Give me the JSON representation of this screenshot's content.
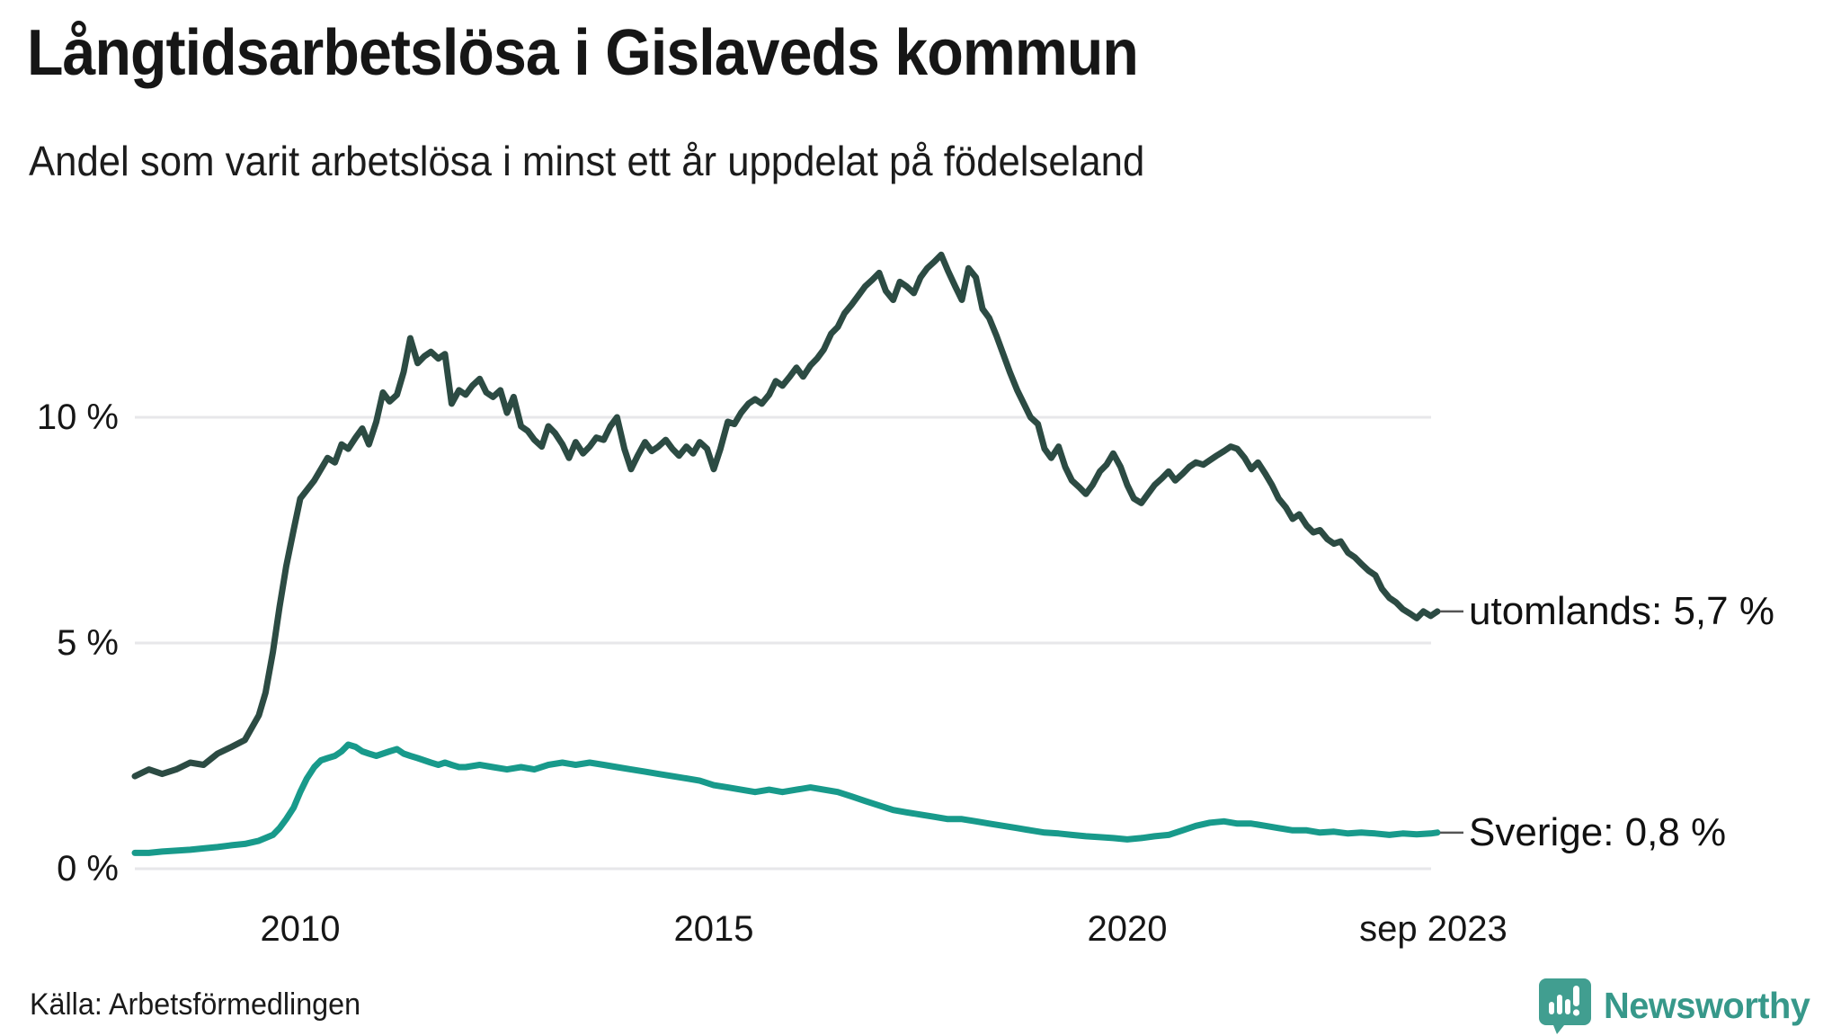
{
  "header": {
    "title": "Långtidsarbetslösa i Gislaveds kommun",
    "subtitle": "Andel som varit arbetslösa i minst ett år uppdelat på födelseland"
  },
  "footer": {
    "source": "Källa: Arbetsförmedlingen",
    "brand": "Newsworthy"
  },
  "colors": {
    "series_utomlands": "#2c4b43",
    "series_sverige": "#189a8b",
    "gridline": "#e7e7ea",
    "annotation_dash": "#555555",
    "text": "#161616",
    "brand_teal": "#419e90",
    "brand_text": "#37988a"
  },
  "chart_data": {
    "type": "line",
    "title": "Långtidsarbetslösa i Gislaveds kommun",
    "subtitle": "Andel som varit arbetslösa i minst ett år uppdelat på födelseland",
    "xlabel": "",
    "ylabel": "",
    "xlim": [
      2008.0,
      2023.75
    ],
    "ylim": [
      0,
      14.2
    ],
    "grid": "horizontal-only",
    "legend_position": "end-of-line-labels",
    "y_ticks": [
      {
        "label": "10 %",
        "value": 10
      },
      {
        "label": "5 %",
        "value": 5
      },
      {
        "label": "0 %",
        "value": 0
      }
    ],
    "x_ticks": [
      {
        "label": "2010",
        "year": 2010
      },
      {
        "label": "2015",
        "year": 2015
      },
      {
        "label": "2020",
        "year": 2020
      },
      {
        "label": "sep 2023",
        "year": 2023.7
      }
    ],
    "series": [
      {
        "name": "utomlands",
        "end_label": "utomlands: 5,7 %",
        "end_value_text": "5,7 %",
        "color": "#2c4b43",
        "points": [
          [
            2008.0,
            2.05
          ],
          [
            2008.17,
            2.2
          ],
          [
            2008.33,
            2.1
          ],
          [
            2008.5,
            2.2
          ],
          [
            2008.67,
            2.35
          ],
          [
            2008.83,
            2.3
          ],
          [
            2009.0,
            2.55
          ],
          [
            2009.17,
            2.7
          ],
          [
            2009.33,
            2.85
          ],
          [
            2009.5,
            3.4
          ],
          [
            2009.58,
            3.9
          ],
          [
            2009.67,
            4.8
          ],
          [
            2009.75,
            5.8
          ],
          [
            2009.83,
            6.7
          ],
          [
            2009.92,
            7.5
          ],
          [
            2010.0,
            8.2
          ],
          [
            2010.17,
            8.6
          ],
          [
            2010.33,
            9.1
          ],
          [
            2010.42,
            9.0
          ],
          [
            2010.5,
            9.4
          ],
          [
            2010.58,
            9.3
          ],
          [
            2010.67,
            9.55
          ],
          [
            2010.75,
            9.75
          ],
          [
            2010.83,
            9.4
          ],
          [
            2010.92,
            9.9
          ],
          [
            2011.0,
            10.55
          ],
          [
            2011.08,
            10.35
          ],
          [
            2011.17,
            10.5
          ],
          [
            2011.25,
            11.0
          ],
          [
            2011.33,
            11.75
          ],
          [
            2011.42,
            11.2
          ],
          [
            2011.5,
            11.35
          ],
          [
            2011.58,
            11.45
          ],
          [
            2011.67,
            11.3
          ],
          [
            2011.75,
            11.4
          ],
          [
            2011.83,
            10.3
          ],
          [
            2011.92,
            10.6
          ],
          [
            2012.0,
            10.5
          ],
          [
            2012.08,
            10.7
          ],
          [
            2012.17,
            10.85
          ],
          [
            2012.25,
            10.55
          ],
          [
            2012.33,
            10.45
          ],
          [
            2012.42,
            10.6
          ],
          [
            2012.5,
            10.1
          ],
          [
            2012.58,
            10.45
          ],
          [
            2012.67,
            9.8
          ],
          [
            2012.75,
            9.7
          ],
          [
            2012.83,
            9.5
          ],
          [
            2012.92,
            9.35
          ],
          [
            2013.0,
            9.8
          ],
          [
            2013.08,
            9.65
          ],
          [
            2013.17,
            9.4
          ],
          [
            2013.25,
            9.1
          ],
          [
            2013.33,
            9.45
          ],
          [
            2013.42,
            9.2
          ],
          [
            2013.5,
            9.35
          ],
          [
            2013.58,
            9.55
          ],
          [
            2013.67,
            9.5
          ],
          [
            2013.75,
            9.8
          ],
          [
            2013.83,
            10.0
          ],
          [
            2013.92,
            9.3
          ],
          [
            2014.0,
            8.85
          ],
          [
            2014.08,
            9.15
          ],
          [
            2014.17,
            9.45
          ],
          [
            2014.25,
            9.25
          ],
          [
            2014.33,
            9.35
          ],
          [
            2014.42,
            9.5
          ],
          [
            2014.5,
            9.3
          ],
          [
            2014.58,
            9.15
          ],
          [
            2014.67,
            9.35
          ],
          [
            2014.75,
            9.2
          ],
          [
            2014.83,
            9.45
          ],
          [
            2014.92,
            9.3
          ],
          [
            2015.0,
            8.85
          ],
          [
            2015.08,
            9.3
          ],
          [
            2015.17,
            9.9
          ],
          [
            2015.25,
            9.85
          ],
          [
            2015.33,
            10.1
          ],
          [
            2015.42,
            10.3
          ],
          [
            2015.5,
            10.4
          ],
          [
            2015.58,
            10.3
          ],
          [
            2015.67,
            10.5
          ],
          [
            2015.75,
            10.8
          ],
          [
            2015.83,
            10.7
          ],
          [
            2015.92,
            10.9
          ],
          [
            2016.0,
            11.1
          ],
          [
            2016.08,
            10.9
          ],
          [
            2016.17,
            11.15
          ],
          [
            2016.25,
            11.3
          ],
          [
            2016.33,
            11.5
          ],
          [
            2016.42,
            11.85
          ],
          [
            2016.5,
            12.0
          ],
          [
            2016.58,
            12.3
          ],
          [
            2016.67,
            12.5
          ],
          [
            2016.75,
            12.7
          ],
          [
            2016.83,
            12.9
          ],
          [
            2016.92,
            13.05
          ],
          [
            2017.0,
            13.2
          ],
          [
            2017.08,
            12.8
          ],
          [
            2017.17,
            12.6
          ],
          [
            2017.25,
            13.0
          ],
          [
            2017.33,
            12.9
          ],
          [
            2017.42,
            12.75
          ],
          [
            2017.5,
            13.1
          ],
          [
            2017.58,
            13.3
          ],
          [
            2017.67,
            13.45
          ],
          [
            2017.75,
            13.6
          ],
          [
            2017.83,
            13.25
          ],
          [
            2017.92,
            12.9
          ],
          [
            2018.0,
            12.6
          ],
          [
            2018.08,
            13.3
          ],
          [
            2018.17,
            13.1
          ],
          [
            2018.25,
            12.4
          ],
          [
            2018.33,
            12.2
          ],
          [
            2018.42,
            11.8
          ],
          [
            2018.5,
            11.4
          ],
          [
            2018.58,
            11.0
          ],
          [
            2018.67,
            10.6
          ],
          [
            2018.75,
            10.3
          ],
          [
            2018.83,
            10.0
          ],
          [
            2018.92,
            9.85
          ],
          [
            2019.0,
            9.3
          ],
          [
            2019.08,
            9.1
          ],
          [
            2019.17,
            9.35
          ],
          [
            2019.25,
            8.9
          ],
          [
            2019.33,
            8.6
          ],
          [
            2019.42,
            8.45
          ],
          [
            2019.5,
            8.3
          ],
          [
            2019.58,
            8.5
          ],
          [
            2019.67,
            8.8
          ],
          [
            2019.75,
            8.95
          ],
          [
            2019.83,
            9.2
          ],
          [
            2019.92,
            8.9
          ],
          [
            2020.0,
            8.5
          ],
          [
            2020.08,
            8.2
          ],
          [
            2020.17,
            8.1
          ],
          [
            2020.25,
            8.3
          ],
          [
            2020.33,
            8.5
          ],
          [
            2020.42,
            8.65
          ],
          [
            2020.5,
            8.8
          ],
          [
            2020.58,
            8.6
          ],
          [
            2020.67,
            8.75
          ],
          [
            2020.75,
            8.9
          ],
          [
            2020.83,
            9.0
          ],
          [
            2020.92,
            8.95
          ],
          [
            2021.0,
            9.05
          ],
          [
            2021.08,
            9.15
          ],
          [
            2021.17,
            9.25
          ],
          [
            2021.25,
            9.35
          ],
          [
            2021.33,
            9.3
          ],
          [
            2021.42,
            9.1
          ],
          [
            2021.5,
            8.85
          ],
          [
            2021.58,
            9.0
          ],
          [
            2021.67,
            8.75
          ],
          [
            2021.75,
            8.5
          ],
          [
            2021.83,
            8.2
          ],
          [
            2021.92,
            8.0
          ],
          [
            2022.0,
            7.75
          ],
          [
            2022.08,
            7.85
          ],
          [
            2022.17,
            7.6
          ],
          [
            2022.25,
            7.45
          ],
          [
            2022.33,
            7.5
          ],
          [
            2022.42,
            7.3
          ],
          [
            2022.5,
            7.2
          ],
          [
            2022.58,
            7.25
          ],
          [
            2022.67,
            7.0
          ],
          [
            2022.75,
            6.9
          ],
          [
            2022.83,
            6.75
          ],
          [
            2022.92,
            6.6
          ],
          [
            2023.0,
            6.5
          ],
          [
            2023.08,
            6.2
          ],
          [
            2023.17,
            6.0
          ],
          [
            2023.25,
            5.9
          ],
          [
            2023.33,
            5.75
          ],
          [
            2023.42,
            5.65
          ],
          [
            2023.5,
            5.55
          ],
          [
            2023.58,
            5.7
          ],
          [
            2023.67,
            5.6
          ],
          [
            2023.75,
            5.7
          ]
        ]
      },
      {
        "name": "Sverige",
        "end_label": "Sverige: 0,8 %",
        "end_value_text": "0,8 %",
        "color": "#189a8b",
        "points": [
          [
            2008.0,
            0.35
          ],
          [
            2008.17,
            0.35
          ],
          [
            2008.33,
            0.38
          ],
          [
            2008.5,
            0.4
          ],
          [
            2008.67,
            0.42
          ],
          [
            2008.83,
            0.45
          ],
          [
            2009.0,
            0.48
          ],
          [
            2009.17,
            0.52
          ],
          [
            2009.33,
            0.55
          ],
          [
            2009.5,
            0.62
          ],
          [
            2009.67,
            0.75
          ],
          [
            2009.75,
            0.9
          ],
          [
            2009.83,
            1.1
          ],
          [
            2009.92,
            1.35
          ],
          [
            2010.0,
            1.7
          ],
          [
            2010.08,
            2.0
          ],
          [
            2010.17,
            2.25
          ],
          [
            2010.25,
            2.4
          ],
          [
            2010.33,
            2.45
          ],
          [
            2010.42,
            2.5
          ],
          [
            2010.5,
            2.6
          ],
          [
            2010.58,
            2.75
          ],
          [
            2010.67,
            2.7
          ],
          [
            2010.75,
            2.6
          ],
          [
            2010.83,
            2.55
          ],
          [
            2010.92,
            2.5
          ],
          [
            2011.0,
            2.55
          ],
          [
            2011.08,
            2.6
          ],
          [
            2011.17,
            2.65
          ],
          [
            2011.25,
            2.55
          ],
          [
            2011.33,
            2.5
          ],
          [
            2011.42,
            2.45
          ],
          [
            2011.5,
            2.4
          ],
          [
            2011.58,
            2.35
          ],
          [
            2011.67,
            2.3
          ],
          [
            2011.75,
            2.35
          ],
          [
            2011.83,
            2.3
          ],
          [
            2011.92,
            2.25
          ],
          [
            2012.0,
            2.25
          ],
          [
            2012.17,
            2.3
          ],
          [
            2012.33,
            2.25
          ],
          [
            2012.5,
            2.2
          ],
          [
            2012.67,
            2.25
          ],
          [
            2012.83,
            2.2
          ],
          [
            2013.0,
            2.3
          ],
          [
            2013.17,
            2.35
          ],
          [
            2013.33,
            2.3
          ],
          [
            2013.5,
            2.35
          ],
          [
            2013.67,
            2.3
          ],
          [
            2013.83,
            2.25
          ],
          [
            2014.0,
            2.2
          ],
          [
            2014.17,
            2.15
          ],
          [
            2014.33,
            2.1
          ],
          [
            2014.5,
            2.05
          ],
          [
            2014.67,
            2.0
          ],
          [
            2014.83,
            1.95
          ],
          [
            2015.0,
            1.85
          ],
          [
            2015.17,
            1.8
          ],
          [
            2015.33,
            1.75
          ],
          [
            2015.5,
            1.7
          ],
          [
            2015.67,
            1.75
          ],
          [
            2015.83,
            1.7
          ],
          [
            2016.0,
            1.75
          ],
          [
            2016.17,
            1.8
          ],
          [
            2016.33,
            1.75
          ],
          [
            2016.5,
            1.7
          ],
          [
            2016.67,
            1.6
          ],
          [
            2016.83,
            1.5
          ],
          [
            2017.0,
            1.4
          ],
          [
            2017.17,
            1.3
          ],
          [
            2017.33,
            1.25
          ],
          [
            2017.5,
            1.2
          ],
          [
            2017.67,
            1.15
          ],
          [
            2017.83,
            1.1
          ],
          [
            2018.0,
            1.1
          ],
          [
            2018.17,
            1.05
          ],
          [
            2018.33,
            1.0
          ],
          [
            2018.5,
            0.95
          ],
          [
            2018.67,
            0.9
          ],
          [
            2018.83,
            0.85
          ],
          [
            2019.0,
            0.8
          ],
          [
            2019.17,
            0.78
          ],
          [
            2019.33,
            0.75
          ],
          [
            2019.5,
            0.72
          ],
          [
            2019.67,
            0.7
          ],
          [
            2019.83,
            0.68
          ],
          [
            2020.0,
            0.65
          ],
          [
            2020.17,
            0.68
          ],
          [
            2020.33,
            0.72
          ],
          [
            2020.5,
            0.75
          ],
          [
            2020.67,
            0.85
          ],
          [
            2020.83,
            0.95
          ],
          [
            2021.0,
            1.02
          ],
          [
            2021.17,
            1.05
          ],
          [
            2021.33,
            1.0
          ],
          [
            2021.5,
            1.0
          ],
          [
            2021.67,
            0.95
          ],
          [
            2021.83,
            0.9
          ],
          [
            2022.0,
            0.85
          ],
          [
            2022.17,
            0.85
          ],
          [
            2022.33,
            0.8
          ],
          [
            2022.5,
            0.82
          ],
          [
            2022.67,
            0.78
          ],
          [
            2022.83,
            0.8
          ],
          [
            2023.0,
            0.78
          ],
          [
            2023.17,
            0.75
          ],
          [
            2023.33,
            0.78
          ],
          [
            2023.5,
            0.76
          ],
          [
            2023.67,
            0.78
          ],
          [
            2023.75,
            0.8
          ]
        ]
      }
    ]
  }
}
